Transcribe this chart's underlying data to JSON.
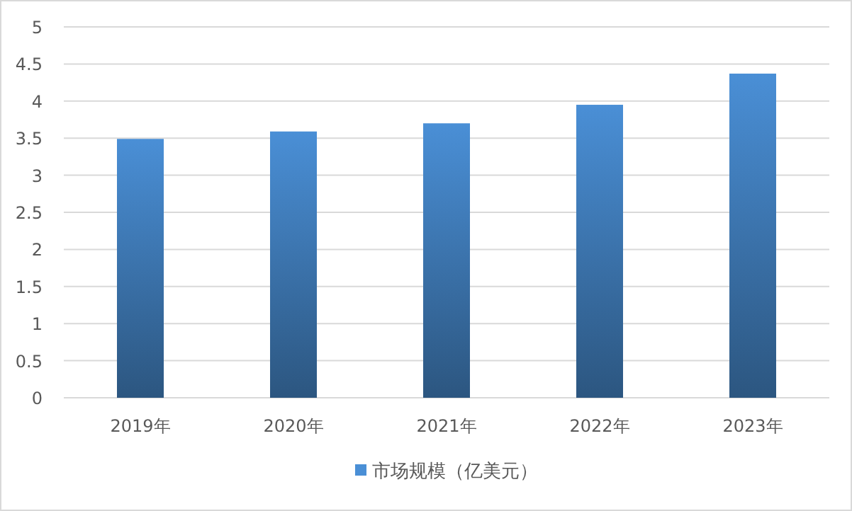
{
  "chart_data": {
    "type": "bar",
    "categories": [
      "2019年",
      "2020年",
      "2021年",
      "2022年",
      "2023年"
    ],
    "series": [
      {
        "name": "市场规模（亿美元）",
        "color": "#4a8fd6",
        "values": [
          3.49,
          3.59,
          3.7,
          3.95,
          4.37
        ]
      }
    ],
    "ylim": [
      0,
      5
    ],
    "yticks": [
      0,
      0.5,
      1,
      1.5,
      2,
      2.5,
      3,
      3.5,
      4,
      4.5,
      5
    ],
    "grid": "y",
    "legend": "bottom"
  }
}
